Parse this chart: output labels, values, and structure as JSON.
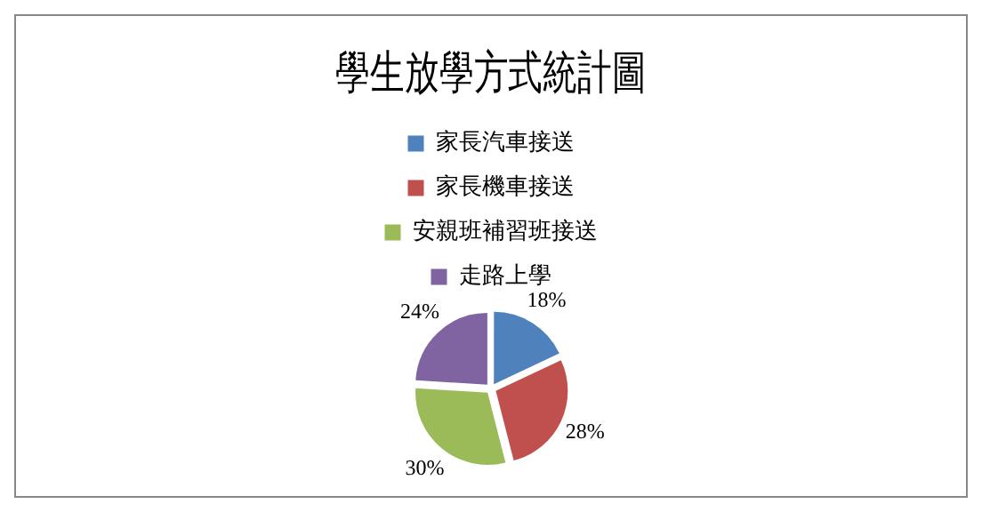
{
  "chart_data": {
    "type": "pie",
    "title": "學生放學方式統計圖",
    "categories": [
      "家長汽車接送",
      "家長機車接送",
      "安親班補習班接送",
      "走路上學"
    ],
    "values": [
      18,
      28,
      30,
      24
    ],
    "colors": [
      "#4f81bd",
      "#c0504d",
      "#9bbb59",
      "#8064a2"
    ],
    "value_labels": [
      "18%",
      "28%",
      "30%",
      "24%"
    ],
    "legend": "top"
  }
}
